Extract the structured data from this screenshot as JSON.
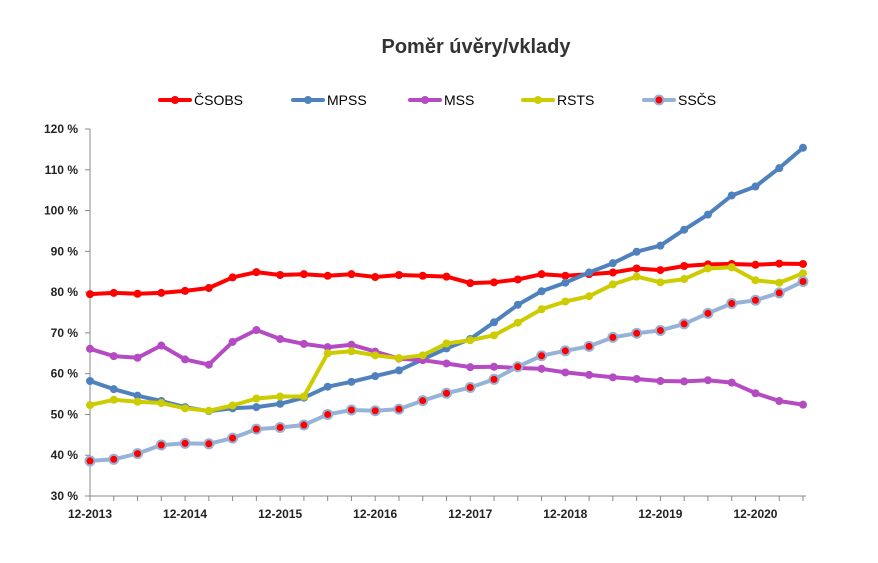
{
  "chart_data": {
    "type": "line",
    "title": "Poměr úvěry/vklady",
    "xlabel": "",
    "ylabel": "",
    "ylim": [
      30,
      120
    ],
    "yticks": [
      "30 %",
      "40 %",
      "50 %",
      "60 %",
      "70 %",
      "80 %",
      "90 %",
      "100 %",
      "110 %",
      "120 %"
    ],
    "xticks": [
      "12-2013",
      "12-2014",
      "12-2015",
      "12-2016",
      "12-2017",
      "12-2018",
      "12-2019",
      "12-2020"
    ],
    "grid": false,
    "legend_position": "top",
    "x": [
      "12-2013",
      "3-2014",
      "6-2014",
      "9-2014",
      "12-2014",
      "3-2015",
      "6-2015",
      "9-2015",
      "12-2015",
      "3-2016",
      "6-2016",
      "9-2016",
      "12-2016",
      "3-2017",
      "6-2017",
      "9-2017",
      "12-2017",
      "3-2018",
      "6-2018",
      "9-2018",
      "12-2018",
      "3-2019",
      "6-2019",
      "9-2019",
      "12-2019",
      "3-2020",
      "6-2020",
      "9-2020",
      "12-2020",
      "3-2021",
      "6-2021"
    ],
    "series": [
      {
        "name": "ČSOBS",
        "color": "#ff0000",
        "marker": "circle",
        "values": [
          79.5,
          79.8,
          79.6,
          79.8,
          80.3,
          81.0,
          83.6,
          84.9,
          84.2,
          84.4,
          84.0,
          84.4,
          83.7,
          84.2,
          84.0,
          83.8,
          82.2,
          82.4,
          83.1,
          84.4,
          84.0,
          84.4,
          84.8,
          85.8,
          85.4,
          86.4,
          86.8,
          86.9,
          86.7,
          87.0,
          86.9
        ]
      },
      {
        "name": "MPSS",
        "color": "#4f81bd",
        "marker": "circle",
        "values": [
          58.2,
          56.2,
          54.6,
          53.3,
          51.8,
          50.8,
          51.5,
          51.8,
          52.6,
          54.1,
          56.8,
          58.0,
          59.4,
          60.8,
          63.5,
          66.2,
          68.5,
          72.6,
          76.9,
          80.2,
          82.3,
          84.8,
          87.1,
          89.9,
          91.4,
          95.3,
          99.0,
          103.7,
          105.9,
          110.4,
          115.4
        ]
      },
      {
        "name": "MSS",
        "color": "#b44bc2",
        "marker": "circle",
        "values": [
          66.1,
          64.3,
          63.9,
          66.9,
          63.5,
          62.2,
          67.8,
          70.7,
          68.5,
          67.3,
          66.5,
          67.1,
          65.4,
          63.7,
          63.3,
          62.5,
          61.6,
          61.7,
          61.4,
          61.2,
          60.3,
          59.7,
          59.1,
          58.7,
          58.2,
          58.1,
          58.4,
          57.8,
          55.2,
          53.3,
          52.4
        ]
      },
      {
        "name": "RSTS",
        "color": "#cccc00",
        "marker": "circle",
        "values": [
          52.3,
          53.6,
          53.1,
          52.8,
          51.5,
          50.9,
          52.2,
          53.9,
          54.4,
          54.4,
          65.0,
          65.5,
          64.5,
          63.8,
          64.5,
          67.4,
          68.2,
          69.4,
          72.5,
          75.8,
          77.7,
          79.0,
          81.9,
          83.8,
          82.4,
          83.2,
          85.8,
          86.1,
          82.9,
          82.3,
          84.6
        ]
      },
      {
        "name": "SSČS",
        "color": "#95b3d7",
        "marker": "circle-red",
        "values": [
          38.6,
          39.0,
          40.4,
          42.5,
          42.9,
          42.8,
          44.2,
          46.4,
          46.8,
          47.4,
          50.0,
          51.1,
          50.9,
          51.3,
          53.4,
          55.2,
          56.6,
          58.6,
          61.7,
          64.4,
          65.6,
          66.7,
          68.9,
          69.9,
          70.6,
          72.2,
          74.8,
          77.2,
          78.0,
          79.8,
          82.6
        ]
      }
    ]
  }
}
